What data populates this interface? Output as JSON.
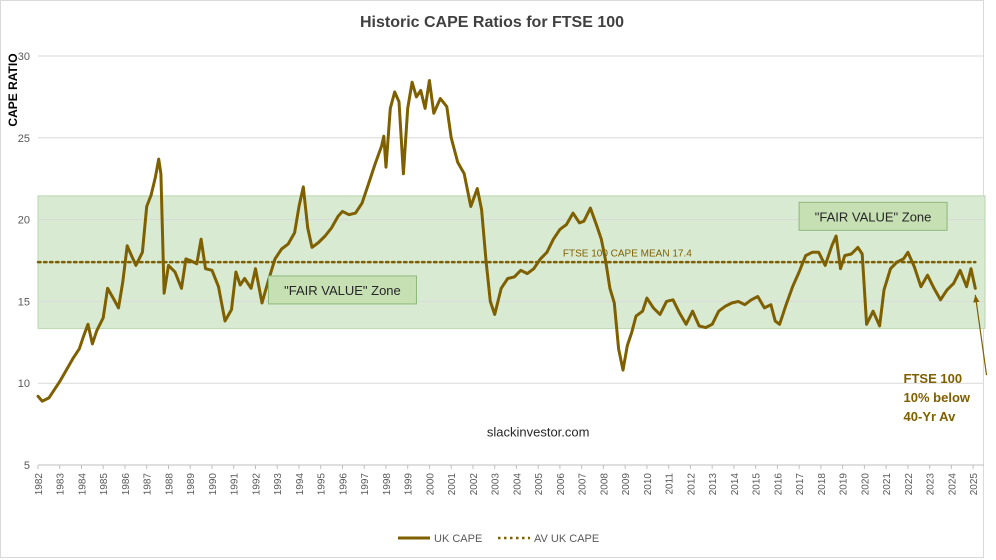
{
  "chart_data": {
    "type": "line",
    "title": "Historic CAPE Ratios for FTSE 100",
    "ylabel": "CAPE RATIO",
    "xlabel": "",
    "ylim": [
      5,
      30
    ],
    "yticks": [
      5,
      10,
      15,
      20,
      25,
      30
    ],
    "xlim": [
      1982,
      2025.5
    ],
    "xticks": [
      "1982",
      "1983",
      "1984",
      "1985",
      "1986",
      "1987",
      "1988",
      "1989",
      "1990",
      "1991",
      "1992",
      "1993",
      "1994",
      "1995",
      "1996",
      "1997",
      "1998",
      "1999",
      "2000",
      "2001",
      "2002",
      "2003",
      "2004",
      "2005",
      "2006",
      "2007",
      "2008",
      "2009",
      "2010",
      "2011",
      "2012",
      "2013",
      "2014",
      "2015",
      "2016",
      "2017",
      "2018",
      "2019",
      "2020",
      "2021",
      "2022",
      "2023",
      "2024",
      "2025"
    ],
    "grid": true,
    "legend_position": "bottom",
    "series": [
      {
        "name": "UK CAPE",
        "style": "solid",
        "color": "#7f6000",
        "points": [
          [
            1982.0,
            9.2
          ],
          [
            1982.2,
            8.9
          ],
          [
            1982.5,
            9.1
          ],
          [
            1982.7,
            9.5
          ],
          [
            1983.0,
            10.1
          ],
          [
            1983.3,
            10.8
          ],
          [
            1983.6,
            11.5
          ],
          [
            1983.9,
            12.1
          ],
          [
            1984.1,
            12.9
          ],
          [
            1984.3,
            13.6
          ],
          [
            1984.5,
            12.4
          ],
          [
            1984.7,
            13.2
          ],
          [
            1985.0,
            14.0
          ],
          [
            1985.2,
            15.8
          ],
          [
            1985.5,
            15.1
          ],
          [
            1985.7,
            14.6
          ],
          [
            1985.9,
            16.2
          ],
          [
            1986.1,
            18.4
          ],
          [
            1986.3,
            17.8
          ],
          [
            1986.5,
            17.2
          ],
          [
            1986.8,
            18.0
          ],
          [
            1987.0,
            20.8
          ],
          [
            1987.2,
            21.5
          ],
          [
            1987.4,
            22.6
          ],
          [
            1987.55,
            23.7
          ],
          [
            1987.65,
            22.8
          ],
          [
            1987.8,
            15.5
          ],
          [
            1988.0,
            17.2
          ],
          [
            1988.3,
            16.8
          ],
          [
            1988.6,
            15.8
          ],
          [
            1988.8,
            17.6
          ],
          [
            1989.0,
            17.5
          ],
          [
            1989.3,
            17.3
          ],
          [
            1989.5,
            18.8
          ],
          [
            1989.7,
            17.0
          ],
          [
            1990.0,
            16.9
          ],
          [
            1990.3,
            15.9
          ],
          [
            1990.6,
            13.8
          ],
          [
            1990.9,
            14.5
          ],
          [
            1991.1,
            16.8
          ],
          [
            1991.3,
            16.0
          ],
          [
            1991.5,
            16.4
          ],
          [
            1991.8,
            15.8
          ],
          [
            1992.0,
            17.0
          ],
          [
            1992.3,
            14.9
          ],
          [
            1992.6,
            16.3
          ],
          [
            1992.9,
            17.6
          ],
          [
            1993.2,
            18.2
          ],
          [
            1993.5,
            18.5
          ],
          [
            1993.8,
            19.2
          ],
          [
            1994.0,
            20.8
          ],
          [
            1994.2,
            22.0
          ],
          [
            1994.4,
            19.5
          ],
          [
            1994.6,
            18.3
          ],
          [
            1994.9,
            18.6
          ],
          [
            1995.2,
            19.0
          ],
          [
            1995.5,
            19.5
          ],
          [
            1995.8,
            20.2
          ],
          [
            1996.0,
            20.5
          ],
          [
            1996.3,
            20.3
          ],
          [
            1996.6,
            20.4
          ],
          [
            1996.9,
            21.0
          ],
          [
            1997.2,
            22.2
          ],
          [
            1997.5,
            23.4
          ],
          [
            1997.8,
            24.5
          ],
          [
            1997.9,
            25.1
          ],
          [
            1998.0,
            23.2
          ],
          [
            1998.2,
            26.8
          ],
          [
            1998.4,
            27.8
          ],
          [
            1998.6,
            27.2
          ],
          [
            1998.8,
            22.8
          ],
          [
            1999.0,
            26.8
          ],
          [
            1999.2,
            28.4
          ],
          [
            1999.4,
            27.5
          ],
          [
            1999.6,
            27.9
          ],
          [
            1999.8,
            26.8
          ],
          [
            2000.0,
            28.5
          ],
          [
            2000.2,
            26.5
          ],
          [
            2000.5,
            27.4
          ],
          [
            2000.8,
            26.9
          ],
          [
            2001.0,
            25.0
          ],
          [
            2001.3,
            23.5
          ],
          [
            2001.6,
            22.8
          ],
          [
            2001.9,
            20.8
          ],
          [
            2002.2,
            21.9
          ],
          [
            2002.4,
            20.6
          ],
          [
            2002.6,
            17.5
          ],
          [
            2002.8,
            15.0
          ],
          [
            2003.0,
            14.2
          ],
          [
            2003.3,
            15.8
          ],
          [
            2003.6,
            16.4
          ],
          [
            2003.9,
            16.5
          ],
          [
            2004.2,
            16.9
          ],
          [
            2004.5,
            16.7
          ],
          [
            2004.8,
            17.0
          ],
          [
            2005.1,
            17.6
          ],
          [
            2005.4,
            18.0
          ],
          [
            2005.7,
            18.8
          ],
          [
            2006.0,
            19.4
          ],
          [
            2006.3,
            19.7
          ],
          [
            2006.6,
            20.4
          ],
          [
            2006.9,
            19.8
          ],
          [
            2007.1,
            19.9
          ],
          [
            2007.4,
            20.7
          ],
          [
            2007.7,
            19.6
          ],
          [
            2007.9,
            18.8
          ],
          [
            2008.1,
            17.5
          ],
          [
            2008.3,
            15.8
          ],
          [
            2008.5,
            14.9
          ],
          [
            2008.7,
            12.1
          ],
          [
            2008.9,
            10.8
          ],
          [
            2009.1,
            12.3
          ],
          [
            2009.3,
            13.1
          ],
          [
            2009.5,
            14.1
          ],
          [
            2009.8,
            14.4
          ],
          [
            2010.0,
            15.2
          ],
          [
            2010.3,
            14.6
          ],
          [
            2010.6,
            14.2
          ],
          [
            2010.9,
            15.0
          ],
          [
            2011.2,
            15.1
          ],
          [
            2011.5,
            14.3
          ],
          [
            2011.8,
            13.6
          ],
          [
            2012.1,
            14.4
          ],
          [
            2012.4,
            13.5
          ],
          [
            2012.7,
            13.4
          ],
          [
            2013.0,
            13.6
          ],
          [
            2013.3,
            14.4
          ],
          [
            2013.6,
            14.7
          ],
          [
            2013.9,
            14.9
          ],
          [
            2014.2,
            15.0
          ],
          [
            2014.5,
            14.8
          ],
          [
            2014.8,
            15.1
          ],
          [
            2015.1,
            15.3
          ],
          [
            2015.4,
            14.6
          ],
          [
            2015.7,
            14.8
          ],
          [
            2015.9,
            13.8
          ],
          [
            2016.1,
            13.6
          ],
          [
            2016.4,
            14.8
          ],
          [
            2016.7,
            15.9
          ],
          [
            2017.0,
            16.8
          ],
          [
            2017.3,
            17.8
          ],
          [
            2017.6,
            18.0
          ],
          [
            2017.9,
            18.0
          ],
          [
            2018.2,
            17.2
          ],
          [
            2018.5,
            18.4
          ],
          [
            2018.7,
            19.0
          ],
          [
            2018.9,
            17.0
          ],
          [
            2019.1,
            17.8
          ],
          [
            2019.4,
            17.9
          ],
          [
            2019.7,
            18.3
          ],
          [
            2019.9,
            17.9
          ],
          [
            2020.1,
            13.6
          ],
          [
            2020.4,
            14.4
          ],
          [
            2020.7,
            13.5
          ],
          [
            2020.9,
            15.7
          ],
          [
            2021.2,
            17.0
          ],
          [
            2021.5,
            17.4
          ],
          [
            2021.8,
            17.6
          ],
          [
            2022.0,
            18.0
          ],
          [
            2022.3,
            17.1
          ],
          [
            2022.6,
            15.9
          ],
          [
            2022.9,
            16.6
          ],
          [
            2023.2,
            15.8
          ],
          [
            2023.5,
            15.1
          ],
          [
            2023.8,
            15.7
          ],
          [
            2024.1,
            16.1
          ],
          [
            2024.4,
            16.9
          ],
          [
            2024.7,
            15.9
          ],
          [
            2024.9,
            17.0
          ],
          [
            2025.1,
            15.8
          ]
        ]
      },
      {
        "name": "AV UK CAPE",
        "style": "dotted",
        "color": "#7f6000",
        "points": [
          [
            1982.0,
            17.4
          ],
          [
            2025.1,
            17.4
          ]
        ]
      }
    ],
    "bands": [
      {
        "y_from": 13.35,
        "y_to": 21.45,
        "color": "#d9ead3"
      }
    ],
    "annotations": [
      {
        "label": "\"FAIR VALUE\" Zone",
        "x": 1996.0,
        "y": 15.7,
        "boxed": true
      },
      {
        "label": "\"FAIR VALUE\" Zone",
        "x": 2020.4,
        "y": 20.2,
        "boxed": true
      },
      {
        "label": "FTSE 100 CAPE MEAN 17.4",
        "x": 2009.1,
        "y": 18.0,
        "boxed": false
      },
      {
        "label": "slackinvestor.com",
        "x": 2005.0,
        "y": 7.0,
        "boxed": false
      }
    ],
    "callout": {
      "lines": [
        "FTSE 100",
        "10% below",
        "40-Yr Av"
      ],
      "x": 2021.8,
      "y": 10.0,
      "arrow_to": [
        2025.1,
        15.4
      ]
    }
  },
  "colors": {
    "line": "#7f6000",
    "band_fill": "#d9ead3",
    "band_stroke": "#b8d6ad",
    "label_box_fill": "#c6e0b4",
    "label_box_stroke": "#8db77c",
    "grid": "#d9d9d9",
    "text": "#404040",
    "axis_text": "#595959"
  }
}
